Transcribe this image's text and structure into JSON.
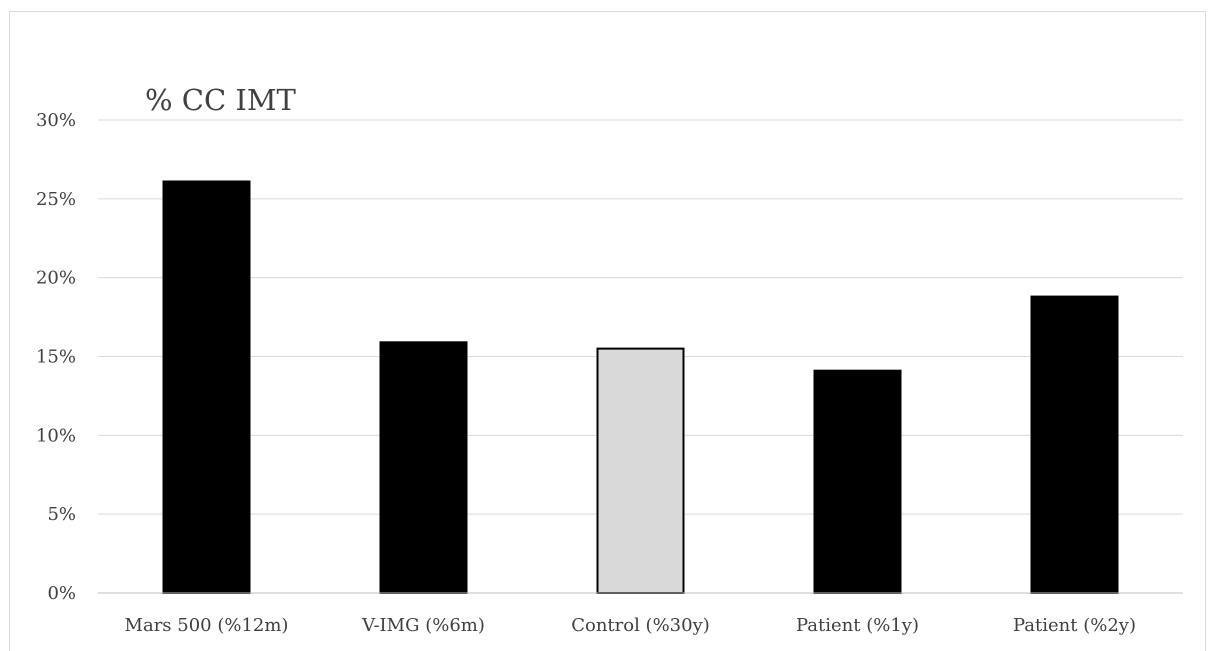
{
  "chart_data": {
    "type": "bar",
    "title": "% CC IMT",
    "xlabel": "",
    "ylabel": "",
    "categories": [
      "Mars 500 (%12m)",
      "V-IMG (%6m)",
      "Control (%30y)",
      "Patient (%1y)",
      "Patient (%2y)"
    ],
    "values": [
      26.1,
      15.9,
      15.5,
      14.1,
      18.8
    ],
    "colors": [
      "#000000",
      "#000000",
      "#d9d9d9",
      "#000000",
      "#000000"
    ],
    "ylim": [
      0,
      30
    ],
    "yticks": [
      0,
      5,
      10,
      15,
      20,
      25,
      30
    ],
    "ytick_labels": [
      "0%",
      "5%",
      "10%",
      "15%",
      "20%",
      "25%",
      "30%"
    ],
    "grid": true,
    "legend": "none"
  }
}
